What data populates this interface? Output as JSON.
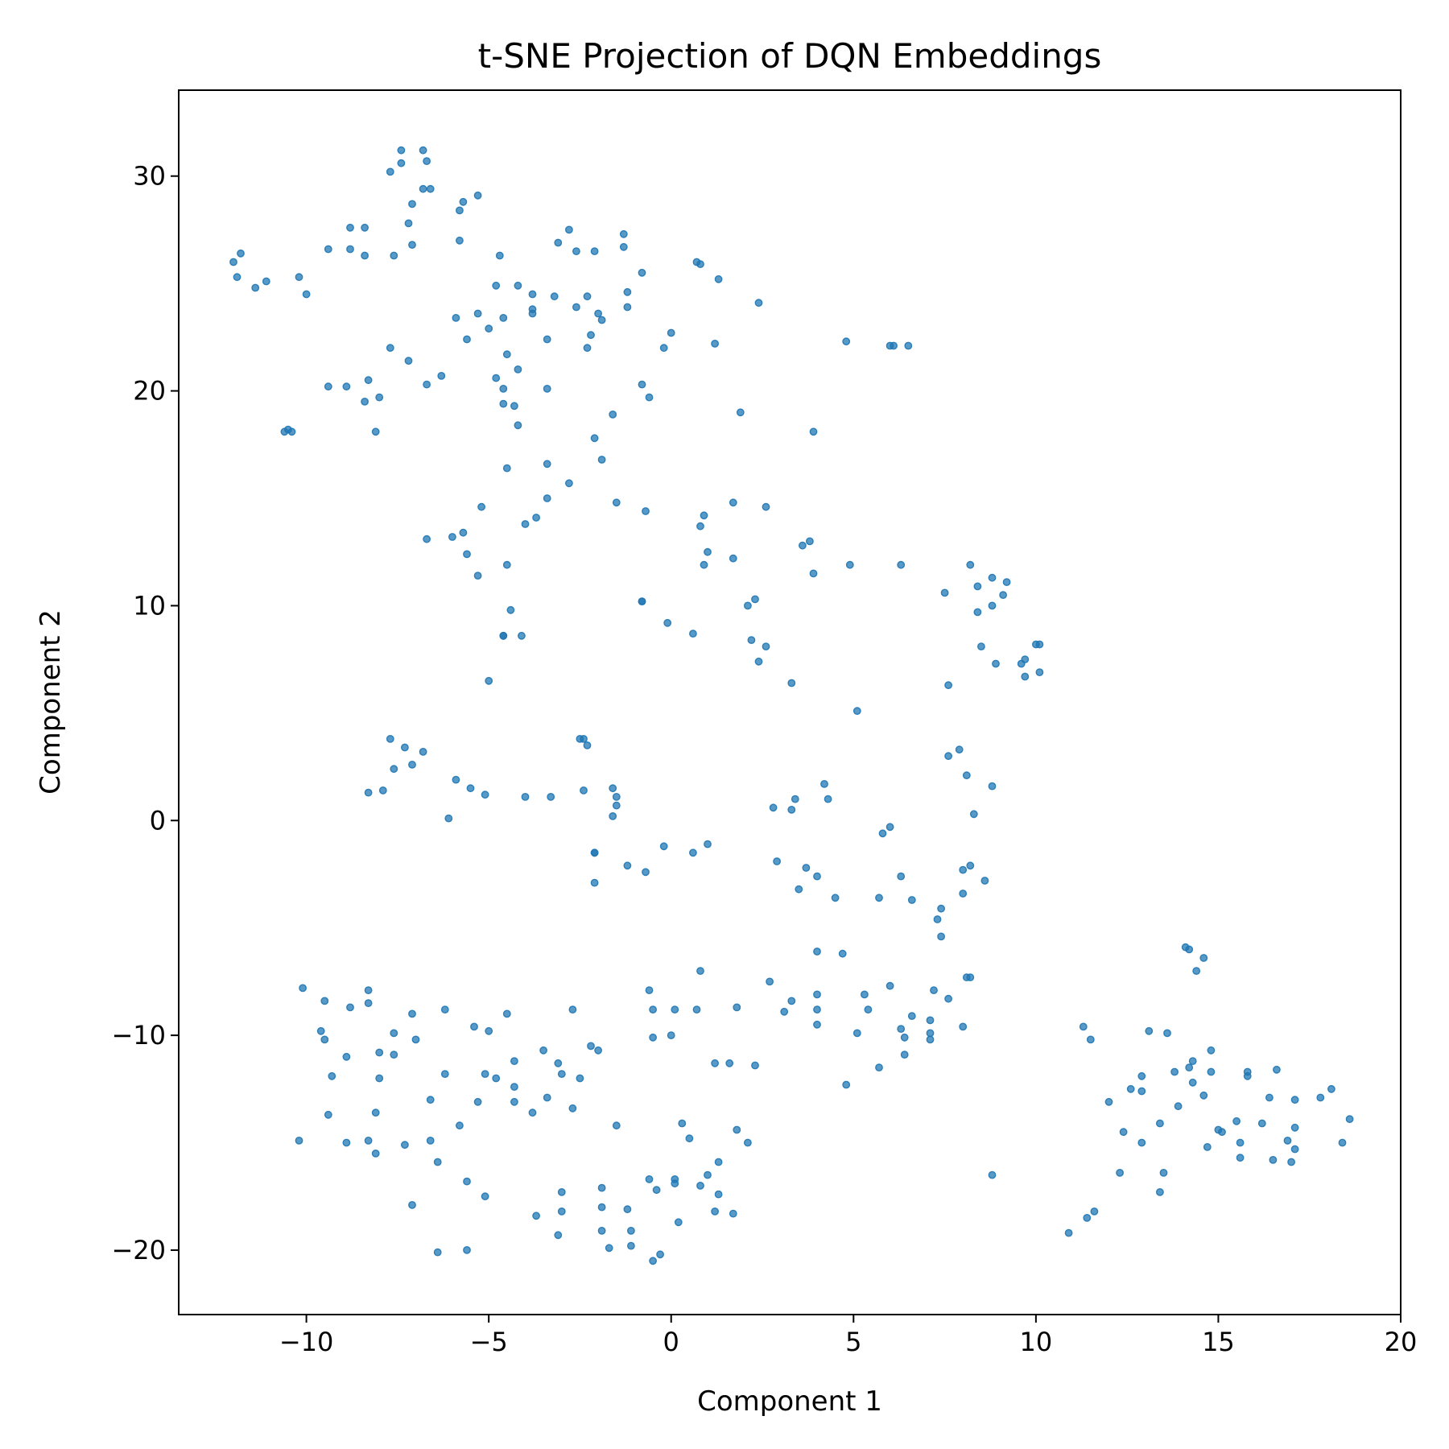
{
  "chart_data": {
    "type": "scatter",
    "title": "t-SNE Projection of DQN Embeddings",
    "xlabel": "Component 1",
    "ylabel": "Component 2",
    "xlim": [
      -13.5,
      20
    ],
    "ylim": [
      -23,
      34
    ],
    "x_ticks": [
      -10,
      -5,
      0,
      5,
      10,
      15,
      20
    ],
    "x_tick_labels": [
      "−10",
      "−5",
      "0",
      "5",
      "10",
      "15",
      "20"
    ],
    "y_ticks": [
      -20,
      -10,
      0,
      10,
      20,
      30
    ],
    "y_tick_labels": [
      "−20",
      "−10",
      "0",
      "10",
      "20",
      "30"
    ],
    "grid": false,
    "legend": "none",
    "marker_color": "#1f77b4",
    "points": [
      [
        -12,
        26
      ],
      [
        -11.8,
        26.4
      ],
      [
        -11.9,
        25.3
      ],
      [
        -11.4,
        24.8
      ],
      [
        -11.1,
        25.1
      ],
      [
        -10.2,
        25.3
      ],
      [
        -10,
        24.5
      ],
      [
        -9.4,
        26.6
      ],
      [
        -8.8,
        27.6
      ],
      [
        -8.4,
        27.6
      ],
      [
        -8.8,
        26.6
      ],
      [
        -8.4,
        26.3
      ],
      [
        -7.7,
        30.2
      ],
      [
        -7.4,
        31.2
      ],
      [
        -7.4,
        30.6
      ],
      [
        -6.8,
        31.2
      ],
      [
        -6.7,
        30.7
      ],
      [
        -6.6,
        29.4
      ],
      [
        -6.8,
        29.4
      ],
      [
        -7.1,
        28.7
      ],
      [
        -7.2,
        27.8
      ],
      [
        -7.1,
        26.8
      ],
      [
        -7.6,
        26.3
      ],
      [
        -5.8,
        28.4
      ],
      [
        -5.7,
        28.8
      ],
      [
        -5.3,
        29.1
      ],
      [
        -5.8,
        27
      ],
      [
        -4.7,
        26.3
      ],
      [
        -4.8,
        24.9
      ],
      [
        -4.2,
        24.9
      ],
      [
        -3.8,
        24.5
      ],
      [
        -3.2,
        24.4
      ],
      [
        -2.8,
        27.5
      ],
      [
        -3.1,
        26.9
      ],
      [
        -2.6,
        26.5
      ],
      [
        -2.1,
        26.5
      ],
      [
        -1.3,
        27.3
      ],
      [
        -1.3,
        26.7
      ],
      [
        -0.8,
        25.5
      ],
      [
        -1.2,
        24.6
      ],
      [
        -2.3,
        24.4
      ],
      [
        -2.6,
        23.9
      ],
      [
        -2,
        23.6
      ],
      [
        -1.2,
        23.9
      ],
      [
        -1.9,
        23.3
      ],
      [
        -3.8,
        23.8
      ],
      [
        -3.8,
        23.6
      ],
      [
        -3.4,
        22.4
      ],
      [
        -2.2,
        22.6
      ],
      [
        -2.3,
        22
      ],
      [
        -5.3,
        23.6
      ],
      [
        -5.9,
        23.4
      ],
      [
        -5,
        22.9
      ],
      [
        -5.6,
        22.4
      ],
      [
        -4.6,
        23.4
      ],
      [
        -4.5,
        21.7
      ],
      [
        -4.2,
        21
      ],
      [
        -4.8,
        20.6
      ],
      [
        -4.6,
        20.1
      ],
      [
        -4.6,
        19.4
      ],
      [
        -4.3,
        19.3
      ],
      [
        -4.2,
        18.4
      ],
      [
        -3.4,
        20.1
      ],
      [
        -7.7,
        22
      ],
      [
        -7.2,
        21.4
      ],
      [
        -6.7,
        20.3
      ],
      [
        -6.3,
        20.7
      ],
      [
        -9.4,
        20.2
      ],
      [
        -8.9,
        20.2
      ],
      [
        -8.3,
        20.5
      ],
      [
        -8.4,
        19.5
      ],
      [
        -8,
        19.7
      ],
      [
        -10.6,
        18.1
      ],
      [
        -10.5,
        18.2
      ],
      [
        -10.4,
        18.1
      ],
      [
        -8.1,
        18.1
      ],
      [
        0.7,
        26
      ],
      [
        0.8,
        25.9
      ],
      [
        1.3,
        25.2
      ],
      [
        2.4,
        24.1
      ],
      [
        0,
        22.7
      ],
      [
        -0.2,
        22
      ],
      [
        1.2,
        22.2
      ],
      [
        -0.8,
        20.3
      ],
      [
        -0.6,
        19.7
      ],
      [
        1.9,
        19
      ],
      [
        4.8,
        22.3
      ],
      [
        6,
        22.1
      ],
      [
        6.1,
        22.1
      ],
      [
        6.5,
        22.1
      ],
      [
        -1.6,
        18.9
      ],
      [
        -2.1,
        17.8
      ],
      [
        -1.9,
        16.8
      ],
      [
        -2.8,
        15.7
      ],
      [
        -3.4,
        16.6
      ],
      [
        -3.4,
        15
      ],
      [
        -3.7,
        14.1
      ],
      [
        -4,
        13.8
      ],
      [
        -4.5,
        16.4
      ],
      [
        -1.5,
        14.8
      ],
      [
        -0.7,
        14.4
      ],
      [
        3.9,
        18.1
      ],
      [
        0.9,
        14.2
      ],
      [
        0.8,
        13.7
      ],
      [
        1.7,
        14.8
      ],
      [
        2.6,
        14.6
      ],
      [
        3.6,
        12.8
      ],
      [
        3.8,
        13
      ],
      [
        1,
        12.5
      ],
      [
        0.9,
        11.9
      ],
      [
        1.7,
        12.2
      ],
      [
        3.9,
        11.5
      ],
      [
        4.9,
        11.9
      ],
      [
        6.3,
        11.9
      ],
      [
        7.5,
        10.6
      ],
      [
        8.2,
        11.9
      ],
      [
        8.4,
        10.9
      ],
      [
        8.8,
        11.3
      ],
      [
        9.2,
        11.1
      ],
      [
        9.1,
        10.5
      ],
      [
        8.8,
        10
      ],
      [
        8.4,
        9.7
      ],
      [
        8.5,
        8.1
      ],
      [
        8.9,
        7.3
      ],
      [
        9.6,
        7.3
      ],
      [
        9.7,
        7.5
      ],
      [
        9.7,
        6.7
      ],
      [
        10,
        8.2
      ],
      [
        10.1,
        8.2
      ],
      [
        10.1,
        6.9
      ],
      [
        7.6,
        6.3
      ],
      [
        -6.7,
        13.1
      ],
      [
        -6,
        13.2
      ],
      [
        -5.7,
        13.4
      ],
      [
        -5.6,
        12.4
      ],
      [
        -5.2,
        14.6
      ],
      [
        -5.3,
        11.4
      ],
      [
        -4.5,
        11.9
      ],
      [
        -4.4,
        9.8
      ],
      [
        -4.6,
        8.6
      ],
      [
        -4.6,
        8.6
      ],
      [
        -4.1,
        8.6
      ],
      [
        -5,
        6.5
      ],
      [
        -0.8,
        10.2
      ],
      [
        -0.8,
        10.2
      ],
      [
        -0.1,
        9.2
      ],
      [
        0.6,
        8.7
      ],
      [
        2.3,
        10.3
      ],
      [
        2.1,
        10
      ],
      [
        2.2,
        8.4
      ],
      [
        2.6,
        8.1
      ],
      [
        2.4,
        7.4
      ],
      [
        3.3,
        6.4
      ],
      [
        5.1,
        5.1
      ],
      [
        -7.7,
        3.8
      ],
      [
        -7.3,
        3.4
      ],
      [
        -6.8,
        3.2
      ],
      [
        -7.1,
        2.6
      ],
      [
        -7.6,
        2.4
      ],
      [
        -8.3,
        1.3
      ],
      [
        -7.9,
        1.4
      ],
      [
        -5.9,
        1.9
      ],
      [
        -5.5,
        1.5
      ],
      [
        -5.1,
        1.2
      ],
      [
        -4,
        1.1
      ],
      [
        -3.3,
        1.1
      ],
      [
        -2.5,
        3.8
      ],
      [
        -2.4,
        3.8
      ],
      [
        -2.3,
        3.5
      ],
      [
        -2.4,
        1.4
      ],
      [
        -1.6,
        1.5
      ],
      [
        -1.5,
        1.1
      ],
      [
        -1.5,
        0.7
      ],
      [
        -1.6,
        0.2
      ],
      [
        -6.1,
        0.1
      ],
      [
        -2.1,
        -1.5
      ],
      [
        -2.1,
        -1.5
      ],
      [
        -0.2,
        -1.2
      ],
      [
        0.6,
        -1.5
      ],
      [
        1,
        -1.1
      ],
      [
        -1.2,
        -2.1
      ],
      [
        -0.7,
        -2.4
      ],
      [
        -2.1,
        -2.9
      ],
      [
        2.8,
        0.6
      ],
      [
        3.3,
        0.5
      ],
      [
        3.4,
        1
      ],
      [
        4.2,
        1.7
      ],
      [
        4.3,
        1
      ],
      [
        2.9,
        -1.9
      ],
      [
        3.7,
        -2.2
      ],
      [
        4,
        -2.6
      ],
      [
        3.5,
        -3.2
      ],
      [
        4.5,
        -3.6
      ],
      [
        6,
        -0.3
      ],
      [
        5.8,
        -0.6
      ],
      [
        6.3,
        -2.6
      ],
      [
        5.7,
        -3.6
      ],
      [
        6.6,
        -3.7
      ],
      [
        7.6,
        3
      ],
      [
        7.9,
        3.3
      ],
      [
        8.1,
        2.1
      ],
      [
        8.3,
        0.3
      ],
      [
        8.8,
        1.6
      ],
      [
        8,
        -2.3
      ],
      [
        8.2,
        -2.1
      ],
      [
        8.6,
        -2.8
      ],
      [
        8,
        -3.4
      ],
      [
        7.4,
        -4.1
      ],
      [
        7.3,
        -4.6
      ],
      [
        7.4,
        -5.4
      ],
      [
        14.1,
        -5.9
      ],
      [
        14.2,
        -6
      ],
      [
        14.6,
        -6.4
      ],
      [
        14.4,
        -7
      ],
      [
        4,
        -6.1
      ],
      [
        4.7,
        -6.2
      ],
      [
        0.8,
        -7
      ],
      [
        2.7,
        -7.5
      ],
      [
        -0.6,
        -7.9
      ],
      [
        -0.5,
        -8.8
      ],
      [
        0.1,
        -8.8
      ],
      [
        0.7,
        -8.8
      ],
      [
        1.8,
        -8.7
      ],
      [
        3.3,
        -8.4
      ],
      [
        3.1,
        -8.9
      ],
      [
        4,
        -8.1
      ],
      [
        4,
        -8.8
      ],
      [
        4,
        -9.5
      ],
      [
        5.3,
        -8.1
      ],
      [
        5.4,
        -8.8
      ],
      [
        6,
        -7.7
      ],
      [
        6.6,
        -9.1
      ],
      [
        7.2,
        -7.9
      ],
      [
        7.6,
        -8.3
      ],
      [
        8.1,
        -7.3
      ],
      [
        8.2,
        -7.3
      ],
      [
        7.1,
        -9.3
      ],
      [
        7.1,
        -9.9
      ],
      [
        7.1,
        -10.2
      ],
      [
        8,
        -9.6
      ],
      [
        6.3,
        -9.7
      ],
      [
        6.4,
        -10.1
      ],
      [
        6.4,
        -10.9
      ],
      [
        5.1,
        -9.9
      ],
      [
        5.7,
        -11.5
      ],
      [
        4.8,
        -12.3
      ],
      [
        2.3,
        -11.4
      ],
      [
        1.2,
        -11.3
      ],
      [
        1.6,
        -11.3
      ],
      [
        -0.5,
        -10.1
      ],
      [
        0,
        -10
      ],
      [
        -2.2,
        -10.5
      ],
      [
        -2.0,
        -10.7
      ],
      [
        -2.7,
        -8.8
      ],
      [
        -10.1,
        -7.8
      ],
      [
        -8.3,
        -7.9
      ],
      [
        -9.5,
        -8.4
      ],
      [
        -8.8,
        -8.7
      ],
      [
        -8.3,
        -8.5
      ],
      [
        -7.1,
        -9
      ],
      [
        -6.2,
        -8.8
      ],
      [
        -4.5,
        -9.0
      ],
      [
        -5.4,
        -9.6
      ],
      [
        -5.0,
        -9.8
      ],
      [
        -9.6,
        -9.8
      ],
      [
        -9.5,
        -10.2
      ],
      [
        -8.9,
        -11
      ],
      [
        -9.3,
        -11.9
      ],
      [
        -8,
        -10.8
      ],
      [
        -7.6,
        -9.9
      ],
      [
        -7.6,
        -10.9
      ],
      [
        -7.0,
        -10.2
      ],
      [
        -8,
        -12
      ],
      [
        -6.2,
        -11.8
      ],
      [
        -5.1,
        -11.8
      ],
      [
        -4.8,
        -12
      ],
      [
        -4.3,
        -11.2
      ],
      [
        -4.3,
        -12.4
      ],
      [
        -3.5,
        -10.7
      ],
      [
        -3.1,
        -11.3
      ],
      [
        -3.0,
        -11.8
      ],
      [
        -2.5,
        -12
      ],
      [
        -3.4,
        -12.9
      ],
      [
        -3.8,
        -13.6
      ],
      [
        -4.3,
        -13.1
      ],
      [
        -5.3,
        -13.1
      ],
      [
        -6.6,
        -13
      ],
      [
        -2.7,
        -13.4
      ],
      [
        -9.4,
        -13.7
      ],
      [
        -8.1,
        -13.6
      ],
      [
        -10.2,
        -14.9
      ],
      [
        -8.9,
        -15.0
      ],
      [
        -8.3,
        -14.9
      ],
      [
        -8.1,
        -15.5
      ],
      [
        -7.3,
        -15.1
      ],
      [
        -6.6,
        -14.9
      ],
      [
        -5.8,
        -14.2
      ],
      [
        -6.4,
        -15.9
      ],
      [
        -5.6,
        -16.8
      ],
      [
        -5.1,
        -17.5
      ],
      [
        -7.1,
        -17.9
      ],
      [
        -6.4,
        -20.1
      ],
      [
        -5.6,
        -20
      ],
      [
        -1.5,
        -14.2
      ],
      [
        0.3,
        -14.1
      ],
      [
        0.5,
        -14.8
      ],
      [
        1.3,
        -15.9
      ],
      [
        1.0,
        -16.5
      ],
      [
        1.8,
        -14.4
      ],
      [
        2.1,
        -15
      ],
      [
        1.7,
        -18.3
      ],
      [
        1.3,
        -17.4
      ],
      [
        1.2,
        -18.2
      ],
      [
        0.8,
        -17.0
      ],
      [
        0.1,
        -16.7
      ],
      [
        0.1,
        -16.9
      ],
      [
        -0.6,
        -16.7
      ],
      [
        -0.4,
        -17.2
      ],
      [
        -1.2,
        -18.1
      ],
      [
        -1.1,
        -19.1
      ],
      [
        -1.1,
        -19.8
      ],
      [
        -0.3,
        -20.2
      ],
      [
        -0.5,
        -20.5
      ],
      [
        0.2,
        -18.7
      ],
      [
        -1.9,
        -17.1
      ],
      [
        -1.9,
        -18
      ],
      [
        -1.9,
        -19.1
      ],
      [
        -1.7,
        -19.9
      ],
      [
        -3.0,
        -17.3
      ],
      [
        -3,
        -18.2
      ],
      [
        -3.1,
        -19.3
      ],
      [
        -3.7,
        -18.4
      ],
      [
        8.8,
        -16.5
      ],
      [
        11.3,
        -9.6
      ],
      [
        11.5,
        -10.2
      ],
      [
        12.0,
        -13.1
      ],
      [
        12.4,
        -14.5
      ],
      [
        12.6,
        -12.5
      ],
      [
        12.9,
        -11.9
      ],
      [
        12.9,
        -12.6
      ],
      [
        12.9,
        -15
      ],
      [
        12.3,
        -16.4
      ],
      [
        13.1,
        -9.8
      ],
      [
        13.4,
        -14.1
      ],
      [
        13.5,
        -16.4
      ],
      [
        13.4,
        -17.3
      ],
      [
        13.6,
        -9.9
      ],
      [
        13.8,
        -11.7
      ],
      [
        13.9,
        -13.3
      ],
      [
        14.2,
        -11.5
      ],
      [
        14.3,
        -11.2
      ],
      [
        14.3,
        -12.2
      ],
      [
        14.6,
        -12.8
      ],
      [
        14.7,
        -15.2
      ],
      [
        14.8,
        -10.7
      ],
      [
        14.8,
        -11.7
      ],
      [
        15.0,
        -14.4
      ],
      [
        15.1,
        -14.5
      ],
      [
        15.5,
        -14
      ],
      [
        15.6,
        -15
      ],
      [
        15.6,
        -15.7
      ],
      [
        15.8,
        -11.9
      ],
      [
        15.8,
        -11.7
      ],
      [
        16.2,
        -14.1
      ],
      [
        16.4,
        -12.9
      ],
      [
        16.5,
        -15.8
      ],
      [
        16.6,
        -11.6
      ],
      [
        16.9,
        -14.9
      ],
      [
        17.0,
        -15.9
      ],
      [
        17.1,
        -13.0
      ],
      [
        17.1,
        -15.3
      ],
      [
        17.1,
        -14.3
      ],
      [
        17.8,
        -12.9
      ],
      [
        18.1,
        -12.5
      ],
      [
        18.4,
        -15
      ],
      [
        18.6,
        -13.9
      ],
      [
        10.9,
        -19.2
      ],
      [
        11.4,
        -18.5
      ],
      [
        11.6,
        -18.2
      ]
    ]
  }
}
